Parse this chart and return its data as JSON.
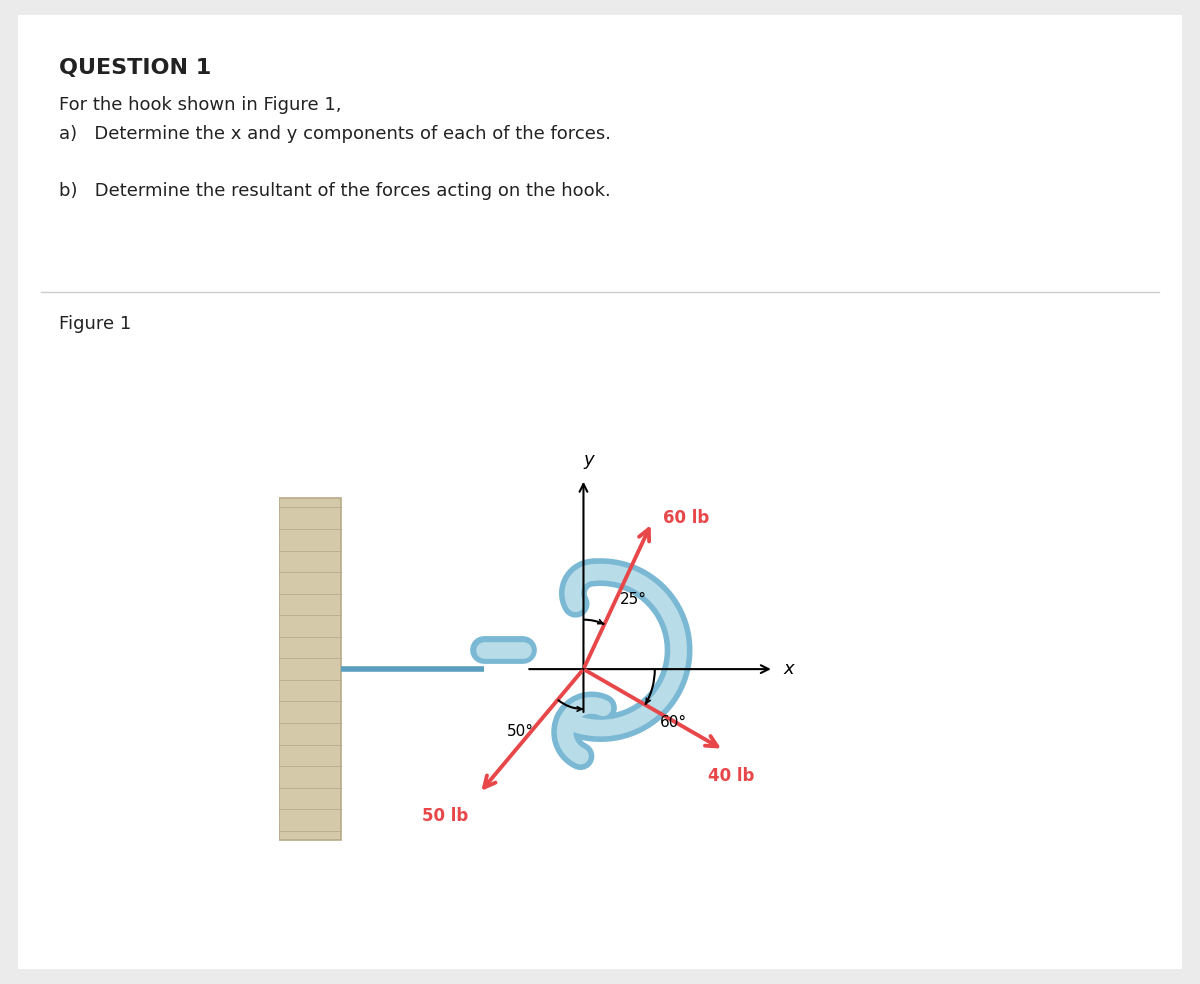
{
  "title": "QUESTION 1",
  "line1": "For the hook shown in Figure 1,",
  "line2a": "a)   Determine the x and y components of each of the forces.",
  "line2b": "b)   Determine the resultant of the forces acting on the hook.",
  "figure_label": "Figure 1",
  "bg_color": "#ebebeb",
  "panel_bg": "#ffffff",
  "force_color": "#e8474a",
  "hook_color_outer": "#7ab8d4",
  "hook_color_inner": "#b8dce8",
  "wall_color": "#d4c9a8",
  "wall_edge": "#b8aa88",
  "screw_color": "#5a9ec0",
  "text_color": "#222222",
  "divider_color": "#cccccc",
  "title_fontsize": 16,
  "body_fontsize": 13,
  "fig_label_fontsize": 13
}
